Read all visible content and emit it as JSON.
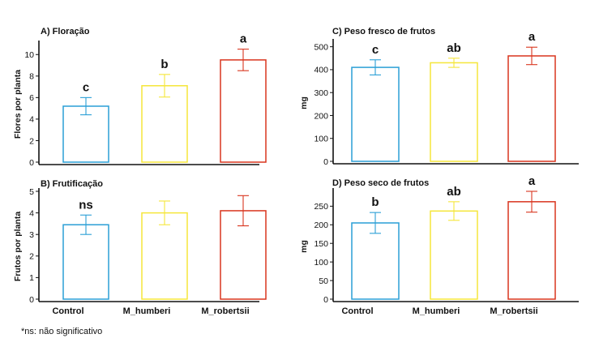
{
  "footnote": "*ns: não significativo",
  "chart_data": [
    {
      "type": "bar",
      "title": "A) Floração",
      "ylabel": "Flores por planta",
      "ylim": [
        0,
        11
      ],
      "yticks": [
        0,
        2,
        4,
        6,
        8,
        10
      ],
      "categories": [
        "Control",
        "M_humberi",
        "M_robertsii"
      ],
      "show_xlabels": false,
      "values": [
        5.2,
        7.1,
        9.5
      ],
      "errors": [
        0.8,
        1.05,
        1.0
      ],
      "significance": [
        "c",
        "b",
        "a"
      ],
      "colors": [
        "#2a9fd6",
        "#f5e63a",
        "#d9351e"
      ]
    },
    {
      "type": "bar",
      "title": "B) Frutificação",
      "ylabel": "Frutos por planta",
      "ylim": [
        0,
        5
      ],
      "yticks": [
        0,
        1,
        2,
        3,
        4,
        5
      ],
      "categories": [
        "Control",
        "M_humberi",
        "M_robertsii"
      ],
      "show_xlabels": true,
      "values": [
        3.45,
        4.0,
        4.1
      ],
      "errors": [
        0.45,
        0.55,
        0.7
      ],
      "significance": [
        "ns",
        "",
        ""
      ],
      "colors": [
        "#2a9fd6",
        "#f5e63a",
        "#d9351e"
      ]
    },
    {
      "type": "bar",
      "title": "C) Peso fresco de frutos",
      "ylabel": "mg",
      "ylim": [
        0,
        520
      ],
      "yticks": [
        0,
        100,
        200,
        300,
        400,
        500
      ],
      "categories": [
        "Control",
        "M_humberi",
        "M_robertsii"
      ],
      "show_xlabels": false,
      "values": [
        410,
        430,
        460
      ],
      "errors": [
        33,
        20,
        38
      ],
      "significance": [
        "c",
        "ab",
        "a"
      ],
      "colors": [
        "#2a9fd6",
        "#f5e63a",
        "#d9351e"
      ]
    },
    {
      "type": "bar",
      "title": "D) Peso seco de frutos",
      "ylabel": "mg",
      "ylim": [
        0,
        290
      ],
      "yticks": [
        0,
        50,
        100,
        150,
        200,
        250
      ],
      "categories": [
        "Control",
        "M_humberi",
        "M_robertsii"
      ],
      "show_xlabels": true,
      "values": [
        205,
        237,
        262
      ],
      "errors": [
        28,
        25,
        28
      ],
      "significance": [
        "b",
        "ab",
        "a"
      ],
      "colors": [
        "#2a9fd6",
        "#f5e63a",
        "#d9351e"
      ]
    }
  ]
}
